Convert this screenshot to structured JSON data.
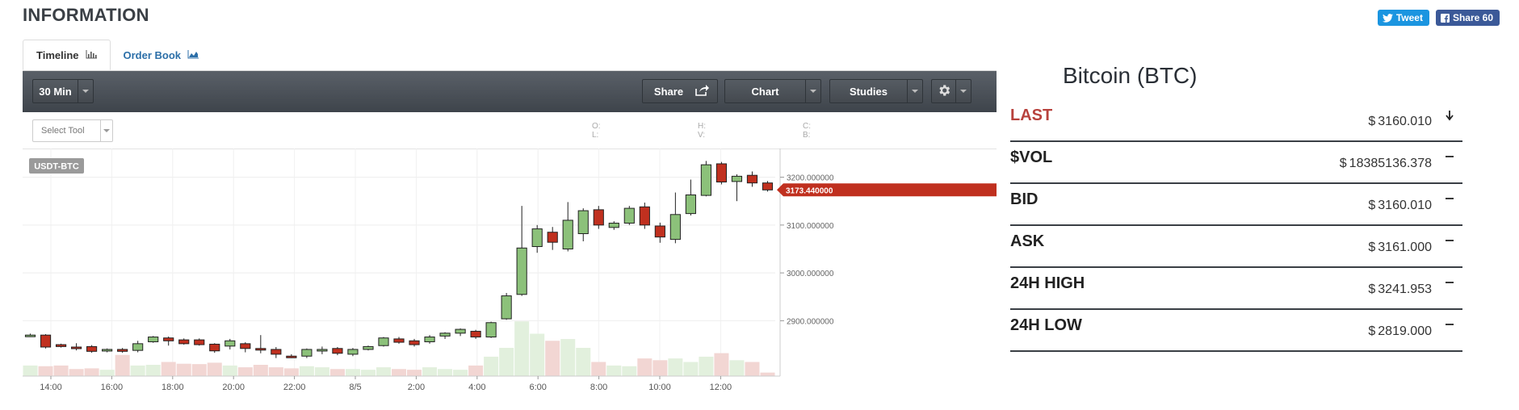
{
  "header": {
    "title": "INFORMATION"
  },
  "social": {
    "tweet_label": "Tweet",
    "share_label": "Share 60"
  },
  "tabs": [
    {
      "label": "Timeline",
      "icon": "bar-chart-icon",
      "active": true
    },
    {
      "label": "Order Book",
      "icon": "area-chart-icon",
      "active": false
    }
  ],
  "toolbar": {
    "interval": "30 Min",
    "share_label": "Share",
    "chart_label": "Chart",
    "studies_label": "Studies",
    "settings_icon": "gear-icon"
  },
  "drawing": {
    "select_tool": "Select Tool",
    "ohlc": {
      "o": "O:",
      "l": "L:",
      "h": "H:",
      "v": "V:",
      "c": "C:",
      "b": "B:"
    }
  },
  "chart_data": {
    "type": "candlestick",
    "symbol": "USDT-BTC",
    "current_price_label": "3173.440000",
    "current_price": 3173.44,
    "ylim": [
      2800,
      3250
    ],
    "y_ticks": [
      {
        "value": 3200,
        "label": "3200.000000"
      },
      {
        "value": 3100,
        "label": "3100.000000"
      },
      {
        "value": 3000,
        "label": "3000.000000"
      },
      {
        "value": 2900,
        "label": "2900.000000"
      }
    ],
    "x_ticks": [
      "14:00",
      "16:00",
      "18:00",
      "20:00",
      "22:00",
      "8/5",
      "2:00",
      "4:00",
      "6:00",
      "8:00",
      "10:00",
      "12:00"
    ],
    "colors": {
      "up": "#8cc17a",
      "down": "#c0301f",
      "vol_up": "#e2f0dd",
      "vol_down": "#f2d6d3"
    },
    "candles": [
      {
        "o": 2870,
        "h": 2873,
        "l": 2866,
        "c": 2870,
        "v": 0.3
      },
      {
        "o": 2870,
        "h": 2872,
        "l": 2842,
        "c": 2845,
        "v": 0.28
      },
      {
        "o": 2850,
        "h": 2852,
        "l": 2844,
        "c": 2846,
        "v": 0.3
      },
      {
        "o": 2845,
        "h": 2853,
        "l": 2838,
        "c": 2842,
        "v": 0.2
      },
      {
        "o": 2846,
        "h": 2849,
        "l": 2833,
        "c": 2836,
        "v": 0.22
      },
      {
        "o": 2838,
        "h": 2842,
        "l": 2834,
        "c": 2840,
        "v": 0.18
      },
      {
        "o": 2840,
        "h": 2843,
        "l": 2833,
        "c": 2836,
        "v": 0.6
      },
      {
        "o": 2838,
        "h": 2858,
        "l": 2834,
        "c": 2852,
        "v": 0.3
      },
      {
        "o": 2856,
        "h": 2868,
        "l": 2854,
        "c": 2866,
        "v": 0.32
      },
      {
        "o": 2864,
        "h": 2867,
        "l": 2848,
        "c": 2858,
        "v": 0.4
      },
      {
        "o": 2860,
        "h": 2863,
        "l": 2850,
        "c": 2852,
        "v": 0.35
      },
      {
        "o": 2860,
        "h": 2863,
        "l": 2848,
        "c": 2850,
        "v": 0.34
      },
      {
        "o": 2851,
        "h": 2853,
        "l": 2833,
        "c": 2837,
        "v": 0.38
      },
      {
        "o": 2847,
        "h": 2862,
        "l": 2840,
        "c": 2858,
        "v": 0.3
      },
      {
        "o": 2852,
        "h": 2855,
        "l": 2834,
        "c": 2842,
        "v": 0.25
      },
      {
        "o": 2842,
        "h": 2870,
        "l": 2832,
        "c": 2840,
        "v": 0.32
      },
      {
        "o": 2840,
        "h": 2845,
        "l": 2822,
        "c": 2830,
        "v": 0.25
      },
      {
        "o": 2826,
        "h": 2830,
        "l": 2822,
        "c": 2824,
        "v": 0.22
      },
      {
        "o": 2826,
        "h": 2842,
        "l": 2822,
        "c": 2840,
        "v": 0.28
      },
      {
        "o": 2838,
        "h": 2846,
        "l": 2830,
        "c": 2840,
        "v": 0.25
      },
      {
        "o": 2842,
        "h": 2845,
        "l": 2828,
        "c": 2832,
        "v": 0.2
      },
      {
        "o": 2830,
        "h": 2843,
        "l": 2826,
        "c": 2840,
        "v": 0.2
      },
      {
        "o": 2840,
        "h": 2848,
        "l": 2838,
        "c": 2846,
        "v": 0.18
      },
      {
        "o": 2848,
        "h": 2866,
        "l": 2846,
        "c": 2864,
        "v": 0.25
      },
      {
        "o": 2862,
        "h": 2866,
        "l": 2852,
        "c": 2855,
        "v": 0.2
      },
      {
        "o": 2858,
        "h": 2862,
        "l": 2846,
        "c": 2850,
        "v": 0.18
      },
      {
        "o": 2856,
        "h": 2870,
        "l": 2852,
        "c": 2866,
        "v": 0.25
      },
      {
        "o": 2868,
        "h": 2876,
        "l": 2862,
        "c": 2874,
        "v": 0.2
      },
      {
        "o": 2874,
        "h": 2884,
        "l": 2868,
        "c": 2882,
        "v": 0.18
      },
      {
        "o": 2878,
        "h": 2881,
        "l": 2862,
        "c": 2866,
        "v": 0.3
      },
      {
        "o": 2866,
        "h": 2898,
        "l": 2864,
        "c": 2896,
        "v": 0.55
      },
      {
        "o": 2904,
        "h": 2958,
        "l": 2902,
        "c": 2952,
        "v": 0.8
      },
      {
        "o": 2955,
        "h": 3140,
        "l": 2952,
        "c": 3052,
        "v": 1.55
      },
      {
        "o": 3055,
        "h": 3100,
        "l": 3042,
        "c": 3092,
        "v": 1.2
      },
      {
        "o": 3085,
        "h": 3096,
        "l": 3048,
        "c": 3064,
        "v": 1.0
      },
      {
        "o": 3050,
        "h": 3148,
        "l": 3045,
        "c": 3110,
        "v": 1.05
      },
      {
        "o": 3082,
        "h": 3135,
        "l": 3066,
        "c": 3130,
        "v": 0.8
      },
      {
        "o": 3132,
        "h": 3140,
        "l": 3092,
        "c": 3100,
        "v": 0.4
      },
      {
        "o": 3095,
        "h": 3108,
        "l": 3090,
        "c": 3104,
        "v": 0.3
      },
      {
        "o": 3104,
        "h": 3140,
        "l": 3100,
        "c": 3135,
        "v": 0.28
      },
      {
        "o": 3138,
        "h": 3147,
        "l": 3092,
        "c": 3100,
        "v": 0.5
      },
      {
        "o": 3098,
        "h": 3105,
        "l": 3063,
        "c": 3075,
        "v": 0.45
      },
      {
        "o": 3070,
        "h": 3168,
        "l": 3062,
        "c": 3122,
        "v": 0.5
      },
      {
        "o": 3124,
        "h": 3195,
        "l": 3120,
        "c": 3163,
        "v": 0.4
      },
      {
        "o": 3162,
        "h": 3234,
        "l": 3160,
        "c": 3226,
        "v": 0.55
      },
      {
        "o": 3228,
        "h": 3232,
        "l": 3185,
        "c": 3190,
        "v": 0.65
      },
      {
        "o": 3191,
        "h": 3206,
        "l": 3150,
        "c": 3202,
        "v": 0.45
      },
      {
        "o": 3204,
        "h": 3212,
        "l": 3180,
        "c": 3188,
        "v": 0.4
      },
      {
        "o": 3188,
        "h": 3192,
        "l": 3170,
        "c": 3173.44,
        "v": 0.1
      }
    ]
  },
  "coin": {
    "title": "Bitcoin (BTC)"
  },
  "stats": [
    {
      "label": "LAST",
      "currency": "$",
      "value": "3160.010",
      "indicator": "arrow-down-icon",
      "highlight": true
    },
    {
      "label": "$VOL",
      "currency": "$",
      "value": "18385136.378",
      "indicator": "dash-icon",
      "highlight": false
    },
    {
      "label": "BID",
      "currency": "$",
      "value": "3160.010",
      "indicator": "dash-icon",
      "highlight": false
    },
    {
      "label": "ASK",
      "currency": "$",
      "value": "3161.000",
      "indicator": "dash-icon",
      "highlight": false
    },
    {
      "label": "24H HIGH",
      "currency": "$",
      "value": "3241.953",
      "indicator": "dash-icon",
      "highlight": false
    },
    {
      "label": "24H LOW",
      "currency": "$",
      "value": "2819.000",
      "indicator": "dash-icon",
      "highlight": false
    }
  ]
}
